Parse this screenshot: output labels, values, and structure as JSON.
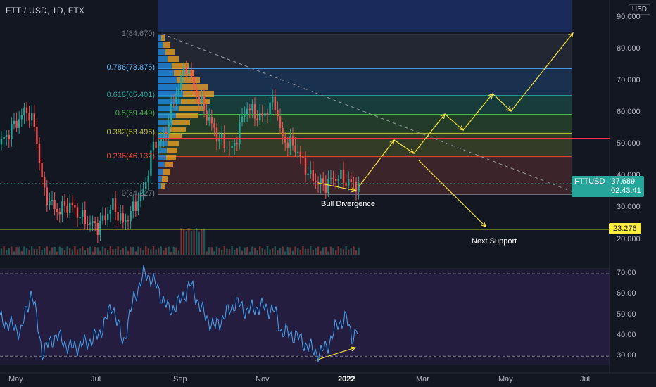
{
  "symbol_title": "FTT / USD, 1D, FTX",
  "currency_badge": "USD",
  "fib_levels": [
    {
      "label": "1(84.670)",
      "price": 84.67,
      "color": "#787b86",
      "band": "#2a2e39"
    },
    {
      "label": "0.786(73.875)",
      "price": 73.875,
      "color": "#64b5f6",
      "band": "#1e3a5f"
    },
    {
      "label": "0.618(65.401)",
      "price": 65.401,
      "color": "#26a69a",
      "band": "#1b4a45"
    },
    {
      "label": "0.5(59.449)",
      "price": 59.449,
      "color": "#4caf50",
      "band": "#2a4a2e"
    },
    {
      "label": "0.382(53.496)",
      "price": 53.496,
      "color": "#c0ca33",
      "band": "#3d4a2a"
    },
    {
      "label": "0.236(46.132)",
      "price": 46.132,
      "color": "#f44336",
      "band": "#4a2a2e"
    },
    {
      "label": "0(34.227)",
      "price": 34.227,
      "color": "#787b86",
      "band": ""
    }
  ],
  "price_axis": [
    "90.000",
    "80.000",
    "70.000",
    "60.000",
    "50.000",
    "40.000",
    "30.000",
    "20.000"
  ],
  "rsi_axis": [
    "70.00",
    "60.00",
    "50.00",
    "40.00",
    "30.00"
  ],
  "time_axis": [
    "May",
    "Jul",
    "Sep",
    "Nov",
    "2022",
    "Mar",
    "May",
    "Jul"
  ],
  "ticker_tag": {
    "symbol": "FTTUSD",
    "price": "37.689",
    "countdown": "02:43:41",
    "color": "#26a69a"
  },
  "support_tag": {
    "price": "23.276",
    "color": "#ffeb3b"
  },
  "annotations": {
    "bull_divergence": "Bull Divergence",
    "next_support": "Next Support"
  },
  "resistance_color": "#f23645",
  "accent": {
    "rsi_line": "#42a5f5",
    "rsi_band": "#7e57c2",
    "arrows": "#ffeb3b"
  }
}
